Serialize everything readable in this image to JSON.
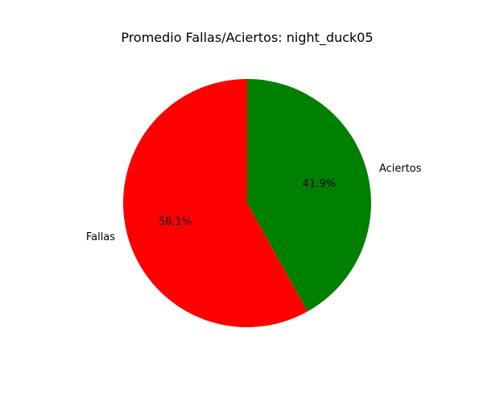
{
  "chart_data": {
    "type": "pie",
    "title": "Promedio Fallas/Aciertos: night_duck05",
    "slices": [
      {
        "label": "Aciertos",
        "value": 41.9,
        "pct_label": "41.9%",
        "color": "#008000"
      },
      {
        "label": "Fallas",
        "value": 58.1,
        "pct_label": "58.1%",
        "color": "#ff0000"
      }
    ],
    "start_angle": "top",
    "direction": "clockwise"
  }
}
